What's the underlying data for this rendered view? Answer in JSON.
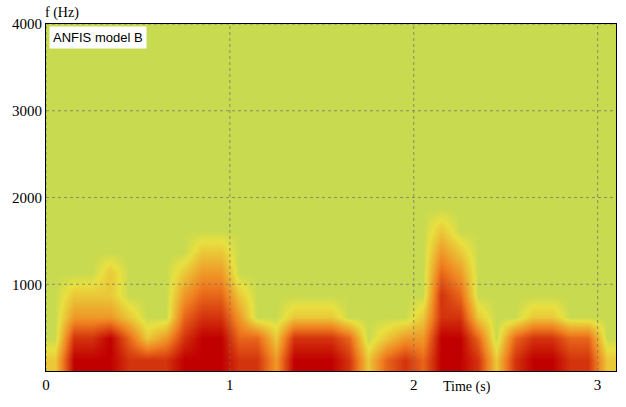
{
  "chart_data": {
    "type": "heatmap",
    "annotation": "ANFIS model B",
    "xlabel": "Time (s)",
    "ylabel": "f (Hz)",
    "x": [
      0.05,
      0.15,
      0.25,
      0.35,
      0.45,
      0.55,
      0.65,
      0.75,
      0.85,
      0.95,
      1.05,
      1.15,
      1.25,
      1.35,
      1.45,
      1.55,
      1.65,
      1.75,
      1.85,
      1.95,
      2.05,
      2.15,
      2.25,
      2.35,
      2.45,
      2.55,
      2.65,
      2.75,
      2.85,
      2.95,
      3.05
    ],
    "y": [
      125,
      375,
      625,
      875,
      1125,
      1375,
      1625,
      1875,
      2125,
      2375,
      2625,
      2875,
      3125,
      3375,
      3625,
      3875
    ],
    "z": [
      [
        6,
        10,
        10,
        10,
        9,
        9,
        9,
        10,
        10,
        10,
        9,
        9,
        7,
        10,
        10,
        10,
        9,
        6,
        8,
        9,
        8,
        10,
        10,
        9,
        6,
        9,
        10,
        10,
        9,
        9,
        6
      ],
      [
        5,
        9,
        9,
        10,
        8,
        6,
        7,
        9,
        10,
        10,
        8,
        8,
        6,
        9,
        9,
        9,
        8,
        5,
        6,
        7,
        7,
        10,
        10,
        8,
        5,
        8,
        9,
        9,
        8,
        8,
        5
      ],
      [
        5,
        7,
        7,
        7,
        6,
        5,
        5,
        8,
        9,
        9,
        7,
        5,
        5,
        6,
        6,
        6,
        5,
        5,
        5,
        5,
        6,
        9,
        9,
        6,
        5,
        5,
        6,
        6,
        5,
        5,
        5
      ],
      [
        5,
        6,
        6,
        6,
        5,
        5,
        5,
        7,
        8,
        8,
        6,
        5,
        5,
        5,
        5,
        5,
        5,
        5,
        5,
        5,
        5,
        9,
        8,
        5,
        5,
        5,
        5,
        5,
        5,
        5,
        5
      ],
      [
        5,
        5,
        5,
        6,
        5,
        5,
        5,
        6,
        7,
        7,
        5,
        5,
        5,
        5,
        5,
        5,
        5,
        5,
        5,
        5,
        5,
        8,
        7,
        5,
        5,
        5,
        5,
        5,
        5,
        5,
        5
      ],
      [
        5,
        5,
        5,
        5,
        5,
        5,
        5,
        5,
        6,
        6,
        5,
        5,
        5,
        5,
        5,
        5,
        5,
        5,
        5,
        5,
        5,
        7,
        6,
        5,
        5,
        5,
        5,
        5,
        5,
        5,
        5
      ],
      [
        5,
        5,
        5,
        5,
        5,
        5,
        5,
        5,
        5,
        5,
        5,
        5,
        5,
        5,
        5,
        5,
        5,
        5,
        5,
        5,
        5,
        6,
        5,
        5,
        5,
        5,
        5,
        5,
        5,
        5,
        5
      ],
      [
        5,
        5,
        5,
        5,
        5,
        5,
        5,
        5,
        5,
        5,
        5,
        5,
        5,
        5,
        5,
        5,
        5,
        5,
        5,
        5,
        5,
        5,
        5,
        5,
        5,
        5,
        5,
        5,
        5,
        5,
        5
      ],
      [
        5,
        5,
        5,
        5,
        5,
        5,
        5,
        5,
        5,
        5,
        5,
        5,
        5,
        5,
        5,
        5,
        5,
        5,
        5,
        5,
        5,
        5,
        5,
        5,
        5,
        5,
        5,
        5,
        5,
        5,
        5
      ],
      [
        5,
        5,
        5,
        5,
        5,
        5,
        5,
        5,
        5,
        5,
        5,
        5,
        5,
        5,
        5,
        5,
        5,
        5,
        5,
        5,
        5,
        5,
        5,
        5,
        5,
        5,
        5,
        5,
        5,
        5,
        5
      ],
      [
        5,
        5,
        5,
        5,
        5,
        5,
        5,
        5,
        5,
        5,
        5,
        5,
        5,
        5,
        5,
        5,
        5,
        5,
        5,
        5,
        5,
        5,
        5,
        5,
        5,
        5,
        5,
        5,
        5,
        5,
        5
      ],
      [
        5,
        5,
        5,
        5,
        5,
        5,
        5,
        5,
        5,
        5,
        5,
        5,
        5,
        5,
        5,
        5,
        5,
        5,
        5,
        5,
        5,
        5,
        5,
        5,
        5,
        5,
        5,
        5,
        5,
        5,
        5
      ],
      [
        5,
        5,
        5,
        5,
        5,
        5,
        5,
        5,
        5,
        5,
        5,
        5,
        5,
        5,
        5,
        5,
        5,
        5,
        5,
        5,
        5,
        5,
        5,
        5,
        5,
        5,
        5,
        5,
        5,
        5,
        5
      ],
      [
        5,
        5,
        5,
        5,
        5,
        5,
        5,
        5,
        5,
        5,
        5,
        5,
        5,
        5,
        5,
        5,
        5,
        5,
        5,
        5,
        5,
        5,
        5,
        5,
        5,
        5,
        5,
        5,
        5,
        5,
        5
      ],
      [
        5,
        5,
        5,
        5,
        5,
        5,
        5,
        5,
        5,
        5,
        5,
        5,
        5,
        5,
        5,
        5,
        5,
        5,
        5,
        5,
        5,
        5,
        5,
        5,
        5,
        5,
        5,
        5,
        5,
        5,
        5
      ],
      [
        5,
        5,
        5,
        5,
        5,
        5,
        5,
        5,
        5,
        5,
        5,
        5,
        5,
        5,
        5,
        5,
        5,
        5,
        5,
        5,
        5,
        5,
        5,
        5,
        5,
        5,
        5,
        5,
        5,
        5,
        5
      ]
    ],
    "zlim": [
      0,
      10
    ],
    "xlim": [
      0,
      3.1
    ],
    "ylim": [
      0,
      4000
    ],
    "xticks": [
      0,
      1,
      2,
      3
    ],
    "yticks": [
      1000,
      2000,
      3000,
      4000
    ],
    "grid": true
  }
}
